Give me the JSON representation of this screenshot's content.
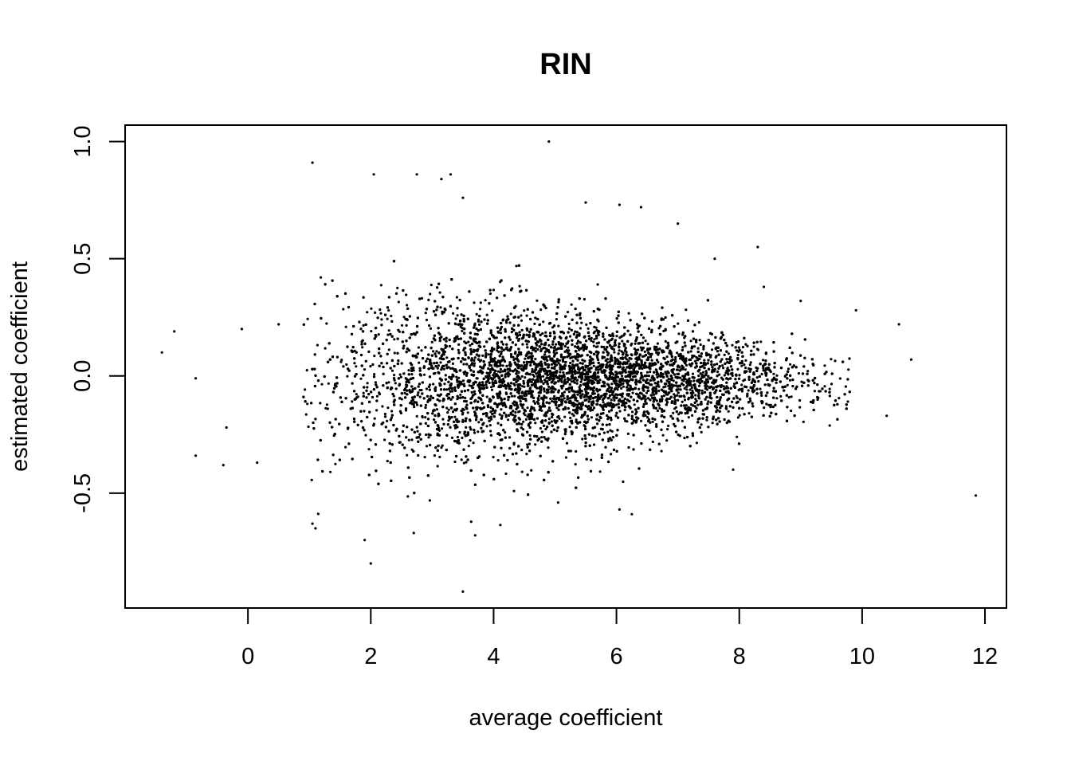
{
  "chart_data": {
    "type": "scatter",
    "title": "RIN",
    "xlabel": "average coefficient",
    "ylabel": "estimated coefficient",
    "xlim": [
      -2.0,
      12.35
    ],
    "ylim": [
      -0.99,
      1.07
    ],
    "x_ticks": [
      0,
      2,
      4,
      6,
      8,
      10,
      12
    ],
    "x_tick_labels": [
      "0",
      "2",
      "4",
      "6",
      "8",
      "10",
      "12"
    ],
    "y_ticks": [
      -0.5,
      0.0,
      0.5,
      1.0
    ],
    "y_tick_labels": [
      "-0.5",
      "0.0",
      "0.5",
      "1.0"
    ],
    "grid": false,
    "legend": "none",
    "point_color": "#000000",
    "notable_points": [
      {
        "x": 4.9,
        "y": 1.0
      },
      {
        "x": 1.05,
        "y": 0.91
      },
      {
        "x": 2.05,
        "y": 0.86
      },
      {
        "x": 2.75,
        "y": 0.86
      },
      {
        "x": 3.3,
        "y": 0.86
      },
      {
        "x": 3.15,
        "y": 0.84
      },
      {
        "x": 3.5,
        "y": 0.76
      },
      {
        "x": 5.5,
        "y": 0.74
      },
      {
        "x": 6.05,
        "y": 0.73
      },
      {
        "x": 6.4,
        "y": 0.72
      },
      {
        "x": 7.0,
        "y": 0.65
      },
      {
        "x": 8.3,
        "y": 0.55
      },
      {
        "x": 7.6,
        "y": 0.5
      },
      {
        "x": 8.4,
        "y": 0.38
      },
      {
        "x": 9.0,
        "y": 0.32
      },
      {
        "x": 9.9,
        "y": 0.28
      },
      {
        "x": 10.6,
        "y": 0.22
      },
      {
        "x": 10.8,
        "y": 0.07
      },
      {
        "x": 10.4,
        "y": -0.17
      },
      {
        "x": 11.85,
        "y": -0.51
      },
      {
        "x": -1.4,
        "y": 0.1
      },
      {
        "x": -1.2,
        "y": 0.19
      },
      {
        "x": -0.85,
        "y": -0.01
      },
      {
        "x": -0.85,
        "y": -0.34
      },
      {
        "x": -0.4,
        "y": -0.38
      },
      {
        "x": -0.35,
        "y": -0.22
      },
      {
        "x": -0.1,
        "y": 0.2
      },
      {
        "x": 0.15,
        "y": -0.37
      },
      {
        "x": 0.5,
        "y": 0.22
      },
      {
        "x": 1.05,
        "y": -0.63
      },
      {
        "x": 1.1,
        "y": -0.65
      },
      {
        "x": 1.9,
        "y": -0.7
      },
      {
        "x": 2.0,
        "y": -0.8
      },
      {
        "x": 2.7,
        "y": -0.67
      },
      {
        "x": 3.5,
        "y": -0.92
      },
      {
        "x": 3.7,
        "y": -0.68
      },
      {
        "x": 6.25,
        "y": -0.59
      },
      {
        "x": 6.05,
        "y": -0.57
      },
      {
        "x": 5.05,
        "y": -0.54
      },
      {
        "x": 7.9,
        "y": -0.4
      }
    ],
    "cloud": {
      "n_points": 9000,
      "x_center": 5.2,
      "x_spread": 1.9,
      "x_range": [
        0.9,
        9.8
      ],
      "y_center": -0.02,
      "y_spread_low_x": 0.2,
      "y_spread_high_x": 0.07
    }
  }
}
